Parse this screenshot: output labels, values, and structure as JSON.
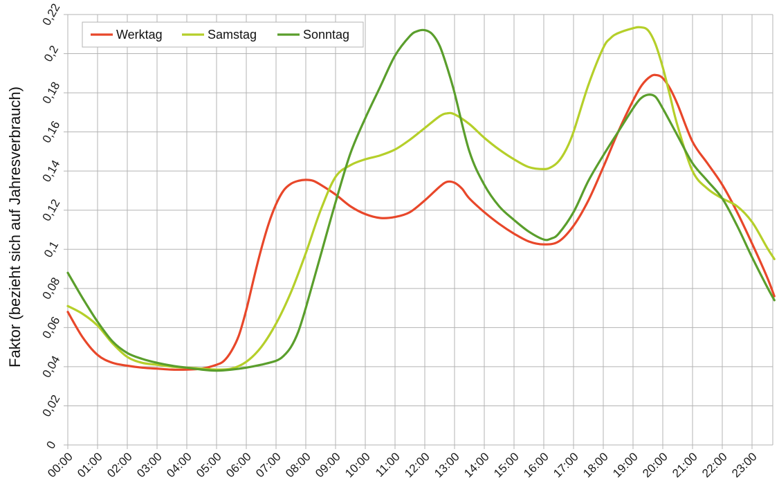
{
  "chart_data": {
    "type": "line",
    "title": "",
    "xlabel": "",
    "ylabel": "Faktor (bezieht sich auf Jahresverbrauch)",
    "ylim": [
      0,
      0.22
    ],
    "yticks": [
      "0",
      "0,02",
      "0,04",
      "0,06",
      "0,08",
      "0,1",
      "0,12",
      "0,14",
      "0,16",
      "0,18",
      "0,2",
      "0,22"
    ],
    "xlim": [
      0,
      23.75
    ],
    "xticks": [
      "00:00",
      "01:00",
      "02:00",
      "03:00",
      "04:00",
      "05:00",
      "06:00",
      "07:00",
      "08:00",
      "09:00",
      "10:00",
      "11:00",
      "12:00",
      "13:00",
      "14:00",
      "15:00",
      "16:00",
      "17:00",
      "18:00",
      "19:00",
      "20:00",
      "21:00",
      "22:00",
      "23:00"
    ],
    "grid": true,
    "legend_position": "top-left",
    "series": [
      {
        "name": "Werktag",
        "color": "#e8472a",
        "points": [
          [
            0,
            0.068
          ],
          [
            0.5,
            0.055
          ],
          [
            1,
            0.046
          ],
          [
            1.5,
            0.042
          ],
          [
            2,
            0.0405
          ],
          [
            2.5,
            0.0395
          ],
          [
            3,
            0.039
          ],
          [
            3.5,
            0.0385
          ],
          [
            4,
            0.0385
          ],
          [
            4.5,
            0.039
          ],
          [
            5,
            0.041
          ],
          [
            5.25,
            0.043
          ],
          [
            5.5,
            0.048
          ],
          [
            5.75,
            0.056
          ],
          [
            6,
            0.069
          ],
          [
            6.25,
            0.085
          ],
          [
            6.5,
            0.1
          ],
          [
            6.75,
            0.113
          ],
          [
            7,
            0.123
          ],
          [
            7.25,
            0.13
          ],
          [
            7.5,
            0.1335
          ],
          [
            7.75,
            0.135
          ],
          [
            8,
            0.1355
          ],
          [
            8.25,
            0.135
          ],
          [
            8.5,
            0.133
          ],
          [
            9,
            0.128
          ],
          [
            9.5,
            0.122
          ],
          [
            10,
            0.118
          ],
          [
            10.5,
            0.116
          ],
          [
            11,
            0.1165
          ],
          [
            11.5,
            0.119
          ],
          [
            12,
            0.125
          ],
          [
            12.5,
            0.132
          ],
          [
            12.75,
            0.1345
          ],
          [
            13,
            0.134
          ],
          [
            13.25,
            0.131
          ],
          [
            13.5,
            0.126
          ],
          [
            14,
            0.119
          ],
          [
            14.5,
            0.113
          ],
          [
            15,
            0.108
          ],
          [
            15.5,
            0.104
          ],
          [
            16,
            0.1025
          ],
          [
            16.5,
            0.104
          ],
          [
            17,
            0.112
          ],
          [
            17.5,
            0.125
          ],
          [
            18,
            0.142
          ],
          [
            18.5,
            0.16
          ],
          [
            19,
            0.176
          ],
          [
            19.3,
            0.184
          ],
          [
            19.6,
            0.1885
          ],
          [
            19.8,
            0.189
          ],
          [
            20,
            0.1875
          ],
          [
            20.25,
            0.182
          ],
          [
            20.5,
            0.174
          ],
          [
            21,
            0.155
          ],
          [
            21.5,
            0.144
          ],
          [
            22,
            0.133
          ],
          [
            22.5,
            0.119
          ],
          [
            23,
            0.103
          ],
          [
            23.5,
            0.086
          ],
          [
            23.75,
            0.076
          ]
        ]
      },
      {
        "name": "Samstag",
        "color": "#b5cf2a",
        "points": [
          [
            0,
            0.071
          ],
          [
            0.5,
            0.067
          ],
          [
            1,
            0.061
          ],
          [
            1.5,
            0.052
          ],
          [
            2,
            0.045
          ],
          [
            2.5,
            0.042
          ],
          [
            3,
            0.041
          ],
          [
            3.5,
            0.04
          ],
          [
            4,
            0.0395
          ],
          [
            4.5,
            0.039
          ],
          [
            5,
            0.0385
          ],
          [
            5.5,
            0.039
          ],
          [
            6,
            0.0425
          ],
          [
            6.5,
            0.05
          ],
          [
            7,
            0.062
          ],
          [
            7.5,
            0.078
          ],
          [
            8,
            0.098
          ],
          [
            8.5,
            0.12
          ],
          [
            9,
            0.137
          ],
          [
            9.5,
            0.143
          ],
          [
            10,
            0.146
          ],
          [
            10.5,
            0.148
          ],
          [
            11,
            0.151
          ],
          [
            11.5,
            0.156
          ],
          [
            12,
            0.162
          ],
          [
            12.5,
            0.168
          ],
          [
            12.75,
            0.1695
          ],
          [
            13,
            0.169
          ],
          [
            13.5,
            0.164
          ],
          [
            14,
            0.157
          ],
          [
            14.5,
            0.151
          ],
          [
            15,
            0.146
          ],
          [
            15.5,
            0.142
          ],
          [
            16,
            0.141
          ],
          [
            16.25,
            0.142
          ],
          [
            16.5,
            0.145
          ],
          [
            16.75,
            0.151
          ],
          [
            17,
            0.16
          ],
          [
            17.5,
            0.184
          ],
          [
            18,
            0.203
          ],
          [
            18.25,
            0.208
          ],
          [
            18.5,
            0.2105
          ],
          [
            19,
            0.213
          ],
          [
            19.25,
            0.2135
          ],
          [
            19.5,
            0.212
          ],
          [
            19.75,
            0.205
          ],
          [
            20,
            0.193
          ],
          [
            20.25,
            0.178
          ],
          [
            20.5,
            0.163
          ],
          [
            21,
            0.14
          ],
          [
            21.5,
            0.131
          ],
          [
            22,
            0.126
          ],
          [
            22.5,
            0.122
          ],
          [
            23,
            0.114
          ],
          [
            23.5,
            0.101
          ],
          [
            23.75,
            0.095
          ]
        ]
      },
      {
        "name": "Sonntag",
        "color": "#5a9e2c",
        "points": [
          [
            0,
            0.088
          ],
          [
            0.5,
            0.075
          ],
          [
            1,
            0.063
          ],
          [
            1.5,
            0.053
          ],
          [
            2,
            0.047
          ],
          [
            2.5,
            0.044
          ],
          [
            3,
            0.042
          ],
          [
            3.5,
            0.0405
          ],
          [
            4,
            0.0395
          ],
          [
            4.5,
            0.0385
          ],
          [
            5,
            0.038
          ],
          [
            5.5,
            0.0385
          ],
          [
            6,
            0.0395
          ],
          [
            6.5,
            0.041
          ],
          [
            7,
            0.043
          ],
          [
            7.25,
            0.0455
          ],
          [
            7.5,
            0.05
          ],
          [
            7.75,
            0.058
          ],
          [
            8,
            0.07
          ],
          [
            8.5,
            0.097
          ],
          [
            9,
            0.124
          ],
          [
            9.5,
            0.149
          ],
          [
            10,
            0.167
          ],
          [
            10.5,
            0.183
          ],
          [
            11,
            0.199
          ],
          [
            11.5,
            0.209
          ],
          [
            11.75,
            0.2115
          ],
          [
            12,
            0.212
          ],
          [
            12.25,
            0.21
          ],
          [
            12.5,
            0.204
          ],
          [
            12.75,
            0.193
          ],
          [
            13,
            0.18
          ],
          [
            13.5,
            0.15
          ],
          [
            14,
            0.133
          ],
          [
            14.5,
            0.122
          ],
          [
            15,
            0.115
          ],
          [
            15.5,
            0.109
          ],
          [
            16,
            0.105
          ],
          [
            16.25,
            0.1055
          ],
          [
            16.5,
            0.108
          ],
          [
            17,
            0.119
          ],
          [
            17.5,
            0.135
          ],
          [
            18,
            0.148
          ],
          [
            18.5,
            0.16
          ],
          [
            19,
            0.172
          ],
          [
            19.25,
            0.177
          ],
          [
            19.5,
            0.179
          ],
          [
            19.75,
            0.178
          ],
          [
            20,
            0.172
          ],
          [
            20.5,
            0.158
          ],
          [
            21,
            0.144
          ],
          [
            21.5,
            0.135
          ],
          [
            22,
            0.126
          ],
          [
            22.5,
            0.112
          ],
          [
            23,
            0.096
          ],
          [
            23.5,
            0.081
          ],
          [
            23.75,
            0.074
          ]
        ]
      }
    ]
  }
}
